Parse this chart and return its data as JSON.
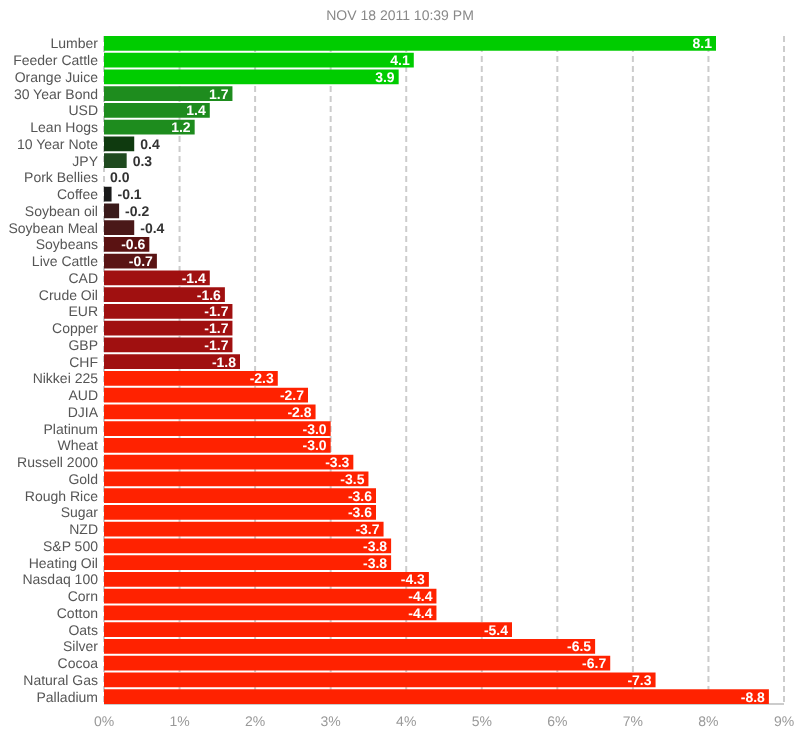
{
  "chart_data": {
    "type": "bar",
    "orientation": "horizontal",
    "title": "NOV 18 2011 10:39 PM",
    "categories": [
      "Lumber",
      "Feeder Cattle",
      "Orange Juice",
      "30 Year Bond",
      "USD",
      "Lean Hogs",
      "10 Year Note",
      "JPY",
      "Pork Bellies",
      "Coffee",
      "Soybean oil",
      "Soybean Meal",
      "Soybeans",
      "Live Cattle",
      "CAD",
      "Crude Oil",
      "EUR",
      "Copper",
      "GBP",
      "CHF",
      "Nikkei 225",
      "AUD",
      "DJIA",
      "Platinum",
      "Wheat",
      "Russell 2000",
      "Gold",
      "Rough Rice",
      "Sugar",
      "NZD",
      "S&P 500",
      "Heating Oil",
      "Nasdaq 100",
      "Corn",
      "Cotton",
      "Oats",
      "Silver",
      "Cocoa",
      "Natural Gas",
      "Palladium"
    ],
    "values": [
      8.1,
      4.1,
      3.9,
      1.7,
      1.4,
      1.2,
      0.4,
      0.3,
      0.0,
      0.1,
      0.2,
      0.4,
      0.6,
      0.7,
      1.4,
      1.6,
      1.7,
      1.7,
      1.7,
      1.8,
      2.3,
      2.7,
      2.8,
      3.0,
      3.0,
      3.3,
      3.5,
      3.6,
      3.6,
      3.7,
      3.8,
      3.8,
      4.3,
      4.4,
      4.4,
      5.4,
      6.5,
      6.7,
      7.3,
      8.8
    ],
    "value_labels": [
      "8.1",
      "4.1",
      "3.9",
      "1.7",
      "1.4",
      "1.2",
      "0.4",
      "0.3",
      "0.0",
      null,
      null,
      null,
      null,
      null,
      null,
      null,
      null,
      null,
      null,
      null,
      null,
      null,
      null,
      null,
      null,
      null,
      null,
      null,
      null,
      null,
      null,
      null,
      null,
      null,
      null,
      null,
      null,
      null,
      null,
      null
    ],
    "annotations": [
      {
        "text": "-0.1",
        "x": 0.1,
        "y": "Coffee"
      },
      {
        "text": "-0.2",
        "x": 0.2,
        "y": "Soybean oil"
      },
      {
        "text": "-0.4",
        "x": 0.4,
        "y": "Soybean Meal"
      },
      {
        "text": "-0.6",
        "x": 0.6,
        "y": "Soybeans"
      },
      {
        "text": "-0.7",
        "x": 0.7,
        "y": "Live Cattle"
      },
      {
        "text": "-1.4",
        "x": 1.4,
        "y": "CAD"
      },
      {
        "text": "-1.6",
        "x": 1.6,
        "y": "Crude Oil"
      },
      {
        "text": "-1.7",
        "x": 1.7,
        "y": "EUR"
      },
      {
        "text": "-1.7",
        "x": 1.7,
        "y": "Copper"
      },
      {
        "text": "-1.7",
        "x": 1.7,
        "y": "GBP"
      },
      {
        "text": "-1.8",
        "x": 1.8,
        "y": "CHF"
      },
      {
        "text": "-2.3",
        "x": 2.3,
        "y": "Nikkei 225"
      },
      {
        "text": "-2.7",
        "x": 2.7,
        "y": "AUD"
      },
      {
        "text": "-2.8",
        "x": 2.8,
        "y": "DJIA"
      },
      {
        "text": "-3.0",
        "x": 3.0,
        "y": "Platinum"
      },
      {
        "text": "-3.0",
        "x": 3.0,
        "y": "Wheat"
      },
      {
        "text": "-3.3",
        "x": 3.3,
        "y": "Russell 2000"
      },
      {
        "text": "-3.5",
        "x": 3.5,
        "y": "Gold"
      },
      {
        "text": "-3.6",
        "x": 3.6,
        "y": "Rough Rice"
      },
      {
        "text": "-3.6",
        "x": 3.6,
        "y": "Sugar"
      },
      {
        "text": "-3.7",
        "x": 3.7,
        "y": "NZD"
      },
      {
        "text": "-3.8",
        "x": 3.8,
        "y": "S&P 500"
      },
      {
        "text": "-3.8",
        "x": 3.8,
        "y": "Heating Oil"
      },
      {
        "text": "-4.3",
        "x": 4.3,
        "y": "Nasdaq 100"
      },
      {
        "text": "-4.4",
        "x": 4.4,
        "y": "Corn"
      },
      {
        "text": "-4.4",
        "x": 4.4,
        "y": "Cotton"
      },
      {
        "text": "-5.4",
        "x": 5.4,
        "y": "Oats"
      },
      {
        "text": "-6.5",
        "x": 6.5,
        "y": "Silver"
      },
      {
        "text": "-6.7",
        "x": 6.7,
        "y": "Cocoa"
      },
      {
        "text": "-7.3",
        "x": 7.3,
        "y": "Natural Gas"
      },
      {
        "text": "-8.8",
        "x": 8.8,
        "y": "Palladium"
      }
    ],
    "colors": [
      "#00cc00",
      "#00cc00",
      "#00cc00",
      "#1e8c1e",
      "#1e8c1e",
      "#1e8c1e",
      "#0f3a0f",
      "#1f4a1f",
      "#222222",
      "#1a1a1a",
      "#3a1a1a",
      "#4a1818",
      "#5a1212",
      "#5a1414",
      "#a01010",
      "#a01010",
      "#a01010",
      "#a01010",
      "#a01010",
      "#a01010",
      "#ff2200",
      "#ff2200",
      "#ff2200",
      "#ff2200",
      "#ff2200",
      "#ff2200",
      "#ff2200",
      "#ff2200",
      "#ff2200",
      "#ff2200",
      "#ff2200",
      "#ff2200",
      "#ff2200",
      "#ff2200",
      "#ff2200",
      "#ff2200",
      "#ff2200",
      "#ff2200",
      "#ff2200",
      "#ff2200"
    ],
    "xlim": [
      0,
      9
    ],
    "xticks": [
      {
        "value": 0,
        "label": "0%"
      },
      {
        "value": 1,
        "label": "1%"
      },
      {
        "value": 2,
        "label": "2%"
      },
      {
        "value": 3,
        "label": "3%"
      },
      {
        "value": 4,
        "label": "4%"
      },
      {
        "value": 5,
        "label": "5%"
      },
      {
        "value": 6,
        "label": "6%"
      },
      {
        "value": 7,
        "label": "7%"
      },
      {
        "value": 8,
        "label": "8%"
      },
      {
        "value": 9,
        "label": "9%"
      }
    ],
    "grid": "x"
  }
}
